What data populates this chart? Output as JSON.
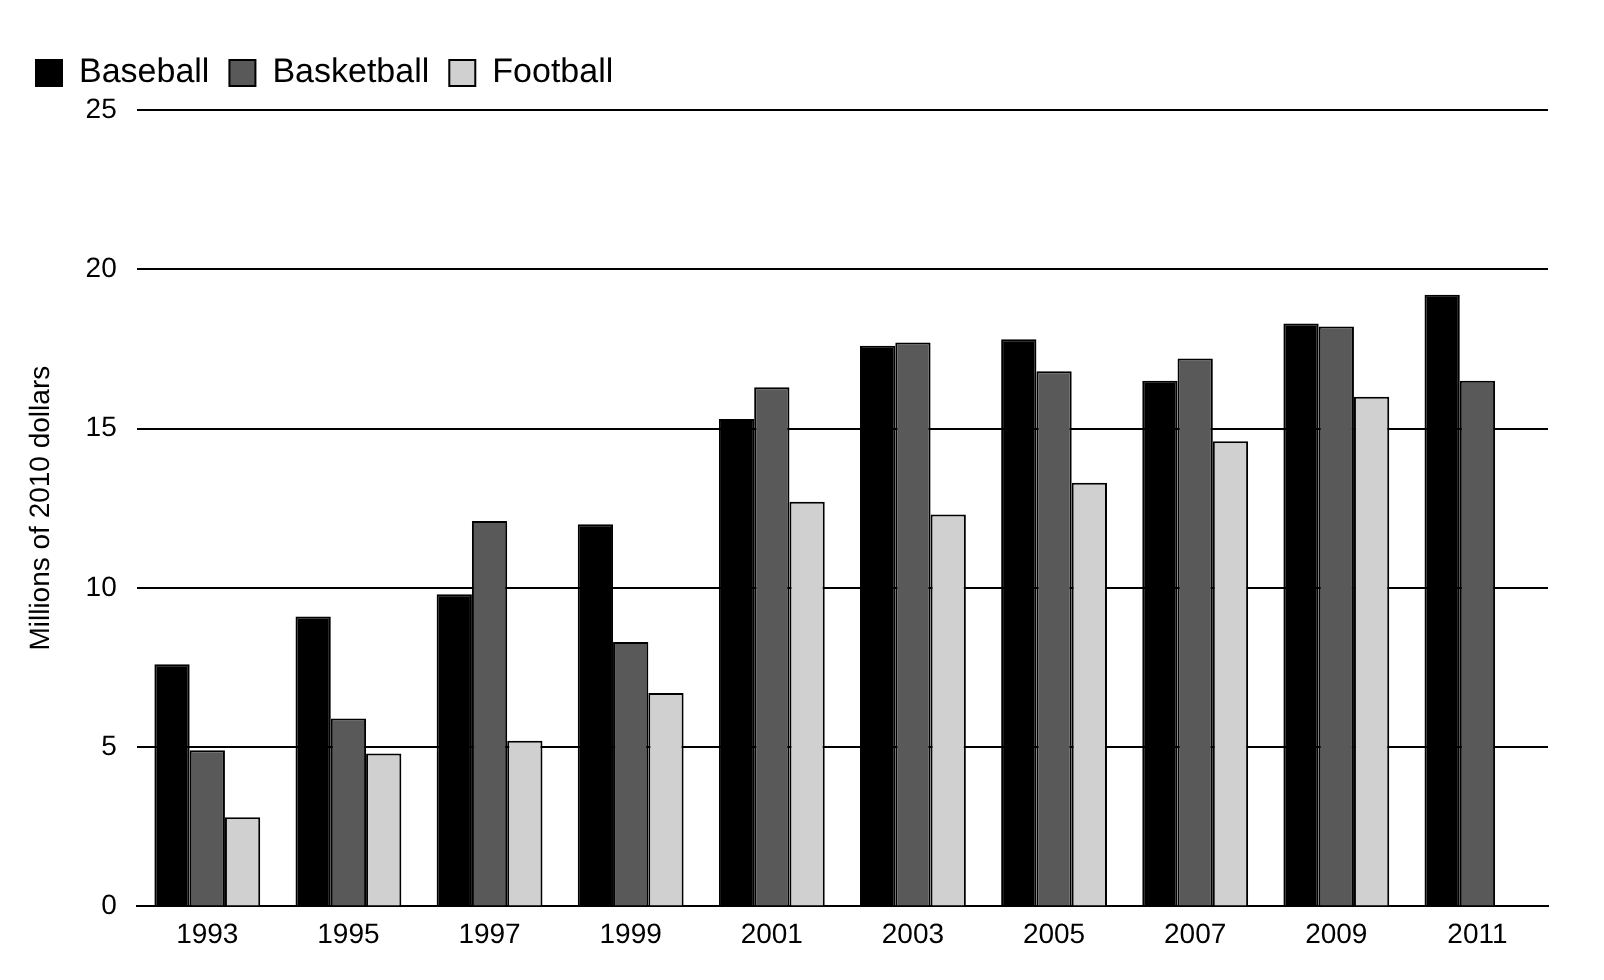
{
  "chart_data": {
    "type": "bar",
    "ylabel": "Millions of 2010 dollars",
    "categories": [
      "1993",
      "1995",
      "1997",
      "1999",
      "2001",
      "2003",
      "2005",
      "2007",
      "2009",
      "2011"
    ],
    "series": [
      {
        "name": "Baseball",
        "color": "#000000",
        "values": [
          7.6,
          9.1,
          9.8,
          12.0,
          15.3,
          17.6,
          17.8,
          16.5,
          18.3,
          19.2
        ]
      },
      {
        "name": "Basketball",
        "color": "#595959",
        "values": [
          4.9,
          5.9,
          12.1,
          8.3,
          16.3,
          17.7,
          16.8,
          17.2,
          18.2,
          16.5
        ]
      },
      {
        "name": "Football",
        "color": "#d0d0d0",
        "values": [
          2.8,
          4.8,
          5.2,
          6.7,
          12.7,
          12.3,
          13.3,
          14.6,
          16.0,
          null
        ]
      }
    ],
    "ylim": [
      0,
      25
    ],
    "yticks": [
      0,
      5,
      10,
      15,
      20,
      25
    ],
    "grid": "y",
    "legend": "top left"
  }
}
